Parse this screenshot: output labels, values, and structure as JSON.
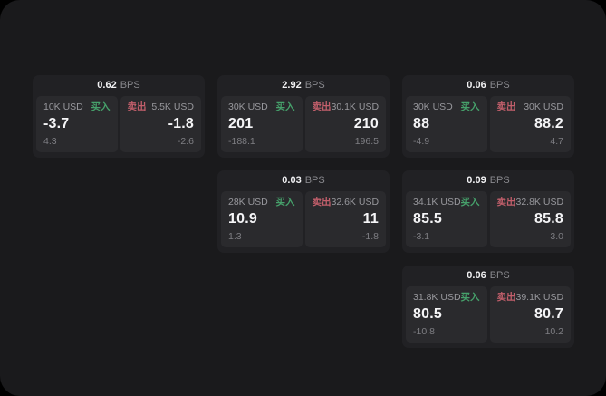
{
  "theme": {
    "backdrop": "#000000",
    "surface_bg": "#1a1a1c",
    "card_bg": "#212124",
    "panel_bg": "#2a2a2d",
    "text_primary": "#f5f5f7",
    "text_secondary": "#98989d",
    "text_muted": "#7e7e83",
    "accent_buy_green": "#46a16b",
    "accent_sell_red": "#c25f6b"
  },
  "labels": {
    "bps": "BPS",
    "buy": "买入",
    "sell": "卖出"
  },
  "cards": [
    {
      "grid": {
        "col": 0,
        "row": 0
      },
      "bps": "0.62",
      "buy": {
        "amount": "10K USD",
        "value": "-3.7",
        "delta": "4.3"
      },
      "sell": {
        "amount": "5.5K USD",
        "value": "-1.8",
        "delta": "-2.6"
      }
    },
    {
      "grid": {
        "col": 1,
        "row": 0
      },
      "bps": "2.92",
      "buy": {
        "amount": "30K USD",
        "value": "201",
        "delta": "-188.1"
      },
      "sell": {
        "amount": "30.1K USD",
        "value": "210",
        "delta": "196.5"
      }
    },
    {
      "grid": {
        "col": 2,
        "row": 0
      },
      "bps": "0.06",
      "buy": {
        "amount": "30K USD",
        "value": "88",
        "delta": "-4.9"
      },
      "sell": {
        "amount": "30K USD",
        "value": "88.2",
        "delta": "4.7"
      }
    },
    {
      "grid": {
        "col": 1,
        "row": 1
      },
      "bps": "0.03",
      "buy": {
        "amount": "28K USD",
        "value": "10.9",
        "delta": "1.3"
      },
      "sell": {
        "amount": "32.6K USD",
        "value": "11",
        "delta": "-1.8"
      }
    },
    {
      "grid": {
        "col": 2,
        "row": 1
      },
      "bps": "0.09",
      "buy": {
        "amount": "34.1K USD",
        "value": "85.5",
        "delta": "-3.1"
      },
      "sell": {
        "amount": "32.8K USD",
        "value": "85.8",
        "delta": "3.0"
      }
    },
    {
      "grid": {
        "col": 2,
        "row": 2
      },
      "bps": "0.06",
      "buy": {
        "amount": "31.8K USD",
        "value": "80.5",
        "delta": "-10.8"
      },
      "sell": {
        "amount": "39.1K USD",
        "value": "80.7",
        "delta": "10.2"
      }
    }
  ]
}
